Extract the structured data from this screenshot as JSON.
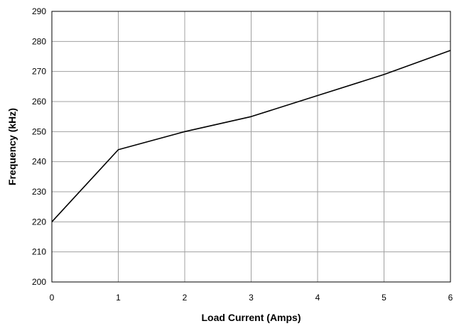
{
  "chart_data": {
    "type": "line",
    "title": "",
    "xlabel": "Load Current (Amps)",
    "ylabel": "Frequency (kHz)",
    "xlim": [
      0,
      6
    ],
    "ylim": [
      200,
      290
    ],
    "xticks": [
      0,
      1,
      2,
      3,
      4,
      5,
      6
    ],
    "yticks": [
      200,
      210,
      220,
      230,
      240,
      250,
      260,
      270,
      280,
      290
    ],
    "grid": true,
    "series": [
      {
        "x": [
          0,
          1,
          2,
          3,
          4,
          5,
          6
        ],
        "y": [
          220,
          244,
          250,
          255,
          262,
          269,
          277
        ],
        "color": "#000000"
      }
    ]
  }
}
